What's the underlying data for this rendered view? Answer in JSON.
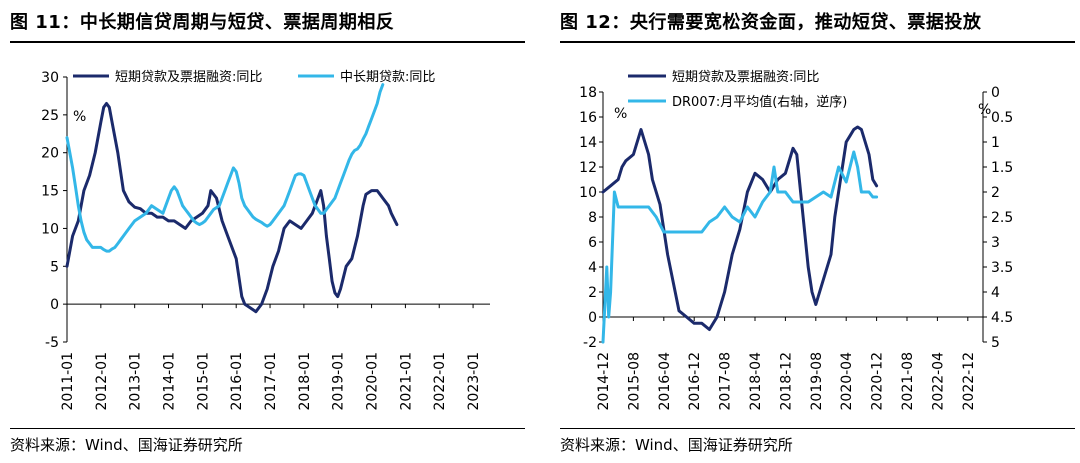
{
  "left": {
    "title": "图 11：中长期信贷周期与短贷、票据周期相反",
    "source": "资料来源：Wind、国海证券研究所",
    "chart_data": {
      "type": "line",
      "unit_label": "%",
      "y_ticks": [
        -5,
        0,
        5,
        10,
        15,
        20,
        25,
        30
      ],
      "ylim": [
        -5,
        30
      ],
      "x_tick_labels": [
        "2011-01",
        "2012-01",
        "2013-01",
        "2014-01",
        "2015-01",
        "2016-01",
        "2017-01",
        "2018-01",
        "2019-01",
        "2020-01",
        "2021-01",
        "2022-01",
        "2023-01"
      ],
      "x_ticks_t": [
        0,
        12,
        24,
        36,
        48,
        60,
        72,
        84,
        96,
        108,
        120,
        132,
        144
      ],
      "x_range": [
        0,
        150
      ],
      "series": [
        {
          "name": "短期贷款及票据融资:同比",
          "color": "#1b2a6b",
          "points": [
            [
              0,
              5
            ],
            [
              2,
              9
            ],
            [
              4,
              11
            ],
            [
              6,
              15
            ],
            [
              8,
              17
            ],
            [
              10,
              20
            ],
            [
              12,
              24
            ],
            [
              13,
              26
            ],
            [
              14,
              26.5
            ],
            [
              15,
              26
            ],
            [
              16,
              24
            ],
            [
              18,
              20
            ],
            [
              20,
              15
            ],
            [
              22,
              13.5
            ],
            [
              24,
              12.8
            ],
            [
              26,
              12.6
            ],
            [
              28,
              12
            ],
            [
              30,
              12
            ],
            [
              32,
              11.5
            ],
            [
              34,
              11.5
            ],
            [
              36,
              11
            ],
            [
              38,
              11
            ],
            [
              40,
              10.5
            ],
            [
              42,
              10
            ],
            [
              44,
              11
            ],
            [
              46,
              11.5
            ],
            [
              48,
              12
            ],
            [
              50,
              13
            ],
            [
              51,
              15
            ],
            [
              53,
              14
            ],
            [
              55,
              11
            ],
            [
              57,
              9
            ],
            [
              60,
              6
            ],
            [
              62,
              1
            ],
            [
              63,
              0
            ],
            [
              65,
              -0.5
            ],
            [
              67,
              -1
            ],
            [
              69,
              0
            ],
            [
              71,
              2
            ],
            [
              73,
              5
            ],
            [
              75,
              7
            ],
            [
              77,
              10
            ],
            [
              79,
              11
            ],
            [
              81,
              10.5
            ],
            [
              83,
              10
            ],
            [
              85,
              11
            ],
            [
              87,
              12
            ],
            [
              89,
              14
            ],
            [
              90,
              15
            ],
            [
              91,
              13
            ],
            [
              92,
              9
            ],
            [
              93,
              6
            ],
            [
              94,
              3
            ],
            [
              95,
              1.5
            ],
            [
              96,
              1
            ],
            [
              97,
              2
            ],
            [
              99,
              5
            ],
            [
              101,
              6
            ],
            [
              103,
              9
            ],
            [
              105,
              13
            ],
            [
              106,
              14.5
            ],
            [
              108,
              15
            ],
            [
              110,
              15
            ],
            [
              112,
              14
            ],
            [
              114,
              13
            ],
            [
              115,
              12
            ],
            [
              117,
              10.5
            ]
          ]
        },
        {
          "name": "中长期贷款:同比",
          "color": "#33b7e8",
          "points": [
            [
              0,
              22
            ],
            [
              1,
              20
            ],
            [
              2,
              18
            ],
            [
              3,
              15.5
            ],
            [
              4,
              13
            ],
            [
              5,
              11
            ],
            [
              6,
              9.5
            ],
            [
              7,
              8.5
            ],
            [
              8,
              8
            ],
            [
              9,
              7.5
            ],
            [
              10,
              7.5
            ],
            [
              11,
              7.5
            ],
            [
              12,
              7.5
            ],
            [
              13,
              7.2
            ],
            [
              14,
              7
            ],
            [
              15,
              7
            ],
            [
              16,
              7.3
            ],
            [
              17,
              7.5
            ],
            [
              18,
              8
            ],
            [
              19,
              8.5
            ],
            [
              20,
              9
            ],
            [
              22,
              10
            ],
            [
              24,
              11
            ],
            [
              26,
              11.5
            ],
            [
              28,
              12
            ],
            [
              30,
              13
            ],
            [
              32,
              12.5
            ],
            [
              34,
              12
            ],
            [
              36,
              14
            ],
            [
              37,
              15
            ],
            [
              38,
              15.5
            ],
            [
              39,
              15
            ],
            [
              40,
              14
            ],
            [
              41,
              13
            ],
            [
              42,
              12.5
            ],
            [
              43,
              12
            ],
            [
              44,
              11.5
            ],
            [
              45,
              11
            ],
            [
              46,
              10.7
            ],
            [
              47,
              10.5
            ],
            [
              48,
              10.7
            ],
            [
              49,
              11
            ],
            [
              50,
              11.5
            ],
            [
              51,
              12
            ],
            [
              52,
              12.5
            ],
            [
              54,
              13
            ],
            [
              55,
              14
            ],
            [
              56,
              15
            ],
            [
              57,
              16
            ],
            [
              58,
              17
            ],
            [
              59,
              18
            ],
            [
              60,
              17.5
            ],
            [
              61,
              16
            ],
            [
              62,
              14
            ],
            [
              63,
              13
            ],
            [
              64,
              12.5
            ],
            [
              65,
              12
            ],
            [
              66,
              11.5
            ],
            [
              67,
              11.2
            ],
            [
              68,
              11
            ],
            [
              69,
              10.8
            ],
            [
              70,
              10.5
            ],
            [
              71,
              10.3
            ],
            [
              72,
              10.5
            ],
            [
              73,
              11
            ],
            [
              74,
              11.5
            ],
            [
              75,
              12
            ],
            [
              76,
              12.5
            ],
            [
              77,
              13
            ],
            [
              78,
              14
            ],
            [
              79,
              15
            ],
            [
              80,
              16
            ],
            [
              81,
              17
            ],
            [
              82,
              17.2
            ],
            [
              83,
              17.2
            ],
            [
              84,
              17
            ],
            [
              85,
              16
            ],
            [
              86,
              15
            ],
            [
              87,
              14
            ],
            [
              88,
              13
            ],
            [
              89,
              12.5
            ],
            [
              90,
              12
            ],
            [
              91,
              12
            ],
            [
              92,
              12.5
            ],
            [
              93,
              13
            ],
            [
              94,
              13.5
            ],
            [
              95,
              14
            ],
            [
              96,
              15
            ],
            [
              97,
              16
            ],
            [
              98,
              17
            ],
            [
              99,
              18
            ],
            [
              100,
              19
            ],
            [
              101,
              19.8
            ],
            [
              102,
              20.3
            ],
            [
              103,
              20.5
            ],
            [
              104,
              21
            ],
            [
              105,
              21.8
            ],
            [
              106,
              22.5
            ],
            [
              107,
              23.5
            ],
            [
              108,
              24.5
            ],
            [
              109,
              25.5
            ],
            [
              110,
              26.5
            ],
            [
              111,
              28
            ],
            [
              112,
              29
            ]
          ]
        }
      ]
    }
  },
  "right": {
    "title": "图 12：央行需要宽松资金面，推动短贷、票据投放",
    "source": "资料来源：Wind、国海证券研究所",
    "chart_data": {
      "type": "line",
      "unit_label_left": "%",
      "unit_label_right": "%",
      "y_ticks_left": [
        -2,
        0,
        2,
        4,
        6,
        8,
        10,
        12,
        14,
        16,
        18
      ],
      "ylim_left": [
        -2,
        18
      ],
      "y_ticks_right": [
        "0",
        "0.5",
        "1",
        "1.5",
        "2",
        "2.5",
        "3",
        "3.5",
        "4",
        "4.5",
        "5"
      ],
      "y_ticks_right_values": [
        0,
        0.5,
        1,
        1.5,
        2,
        2.5,
        3,
        3.5,
        4,
        4.5,
        5
      ],
      "ylim_right_inverted": [
        0,
        5
      ],
      "x_tick_labels": [
        "2014-12",
        "2015-08",
        "2016-04",
        "2016-12",
        "2017-08",
        "2018-04",
        "2018-12",
        "2019-08",
        "2020-04",
        "2020-12",
        "2021-08",
        "2022-04",
        "2022-12"
      ],
      "x_ticks_t": [
        0,
        8,
        16,
        24,
        32,
        40,
        48,
        56,
        64,
        72,
        80,
        88,
        96
      ],
      "x_range": [
        0,
        100
      ],
      "series": [
        {
          "name": "短期贷款及票据融资:同比",
          "axis": "left",
          "color": "#1b2a6b",
          "points": [
            [
              0,
              10
            ],
            [
              2,
              10.5
            ],
            [
              4,
              11
            ],
            [
              5,
              12
            ],
            [
              6,
              12.5
            ],
            [
              8,
              13
            ],
            [
              10,
              15
            ],
            [
              11,
              14
            ],
            [
              12,
              13
            ],
            [
              13,
              11
            ],
            [
              15,
              9
            ],
            [
              17,
              5
            ],
            [
              19,
              2
            ],
            [
              20,
              0.5
            ],
            [
              22,
              0
            ],
            [
              24,
              -0.5
            ],
            [
              26,
              -0.5
            ],
            [
              28,
              -1
            ],
            [
              30,
              0
            ],
            [
              32,
              2
            ],
            [
              34,
              5
            ],
            [
              36,
              7
            ],
            [
              38,
              10
            ],
            [
              40,
              11.5
            ],
            [
              42,
              11
            ],
            [
              44,
              10
            ],
            [
              46,
              11
            ],
            [
              48,
              11.5
            ],
            [
              50,
              13.5
            ],
            [
              51,
              13
            ],
            [
              52,
              10
            ],
            [
              53,
              7
            ],
            [
              54,
              4
            ],
            [
              55,
              2
            ],
            [
              56,
              1
            ],
            [
              57,
              2
            ],
            [
              58,
              3
            ],
            [
              60,
              5
            ],
            [
              61,
              8
            ],
            [
              62,
              10
            ],
            [
              63,
              12
            ],
            [
              64,
              14
            ],
            [
              65,
              14.5
            ],
            [
              66,
              15
            ],
            [
              67,
              15.2
            ],
            [
              68,
              15
            ],
            [
              69,
              14
            ],
            [
              70,
              13
            ],
            [
              71,
              11
            ],
            [
              72,
              10.5
            ]
          ]
        },
        {
          "name": "DR007:月平均值(右轴，逆序)",
          "axis": "right",
          "color": "#33b7e8",
          "points": [
            [
              0,
              5
            ],
            [
              1,
              3.5
            ],
            [
              1.5,
              4.5
            ],
            [
              2,
              4
            ],
            [
              3,
              2
            ],
            [
              4,
              2.3
            ],
            [
              6,
              2.3
            ],
            [
              8,
              2.3
            ],
            [
              10,
              2.3
            ],
            [
              12,
              2.3
            ],
            [
              14,
              2.5
            ],
            [
              16,
              2.8
            ],
            [
              18,
              2.8
            ],
            [
              20,
              2.8
            ],
            [
              22,
              2.8
            ],
            [
              24,
              2.8
            ],
            [
              26,
              2.8
            ],
            [
              28,
              2.6
            ],
            [
              30,
              2.5
            ],
            [
              32,
              2.3
            ],
            [
              34,
              2.5
            ],
            [
              36,
              2.6
            ],
            [
              38,
              2.3
            ],
            [
              40,
              2.5
            ],
            [
              42,
              2.2
            ],
            [
              44,
              2
            ],
            [
              45,
              1.5
            ],
            [
              46,
              2
            ],
            [
              48,
              2
            ],
            [
              50,
              2.2
            ],
            [
              52,
              2.2
            ],
            [
              54,
              2.2
            ],
            [
              56,
              2.1
            ],
            [
              58,
              2
            ],
            [
              60,
              2.1
            ],
            [
              62,
              1.5
            ],
            [
              64,
              1.8
            ],
            [
              66,
              1.2
            ],
            [
              67,
              1.5
            ],
            [
              68,
              2
            ],
            [
              70,
              2
            ],
            [
              71,
              2.1
            ],
            [
              72,
              2.1
            ]
          ]
        }
      ]
    }
  }
}
